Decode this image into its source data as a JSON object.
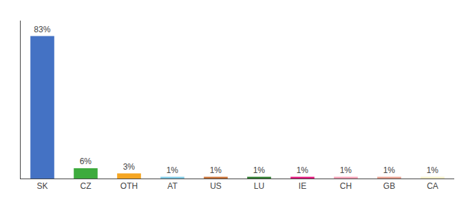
{
  "chart_data": {
    "type": "bar",
    "categories": [
      "SK",
      "CZ",
      "OTH",
      "AT",
      "US",
      "LU",
      "IE",
      "CH",
      "GB",
      "CA"
    ],
    "values": [
      83,
      6,
      3,
      1,
      1,
      1,
      1,
      1,
      1,
      1
    ],
    "value_labels": [
      "83%",
      "6%",
      "3%",
      "1%",
      "1%",
      "1%",
      "1%",
      "1%",
      "1%",
      "1%"
    ],
    "colors": [
      "#4472c4",
      "#3dab3d",
      "#f5a623",
      "#7ec8e3",
      "#c87137",
      "#2d7a2d",
      "#e0157a",
      "#f4a0b5",
      "#e8a090",
      "#f5f0c8"
    ],
    "ylim": [
      0,
      92
    ],
    "data_labels": true,
    "tick_labels": "x",
    "grid": false
  }
}
